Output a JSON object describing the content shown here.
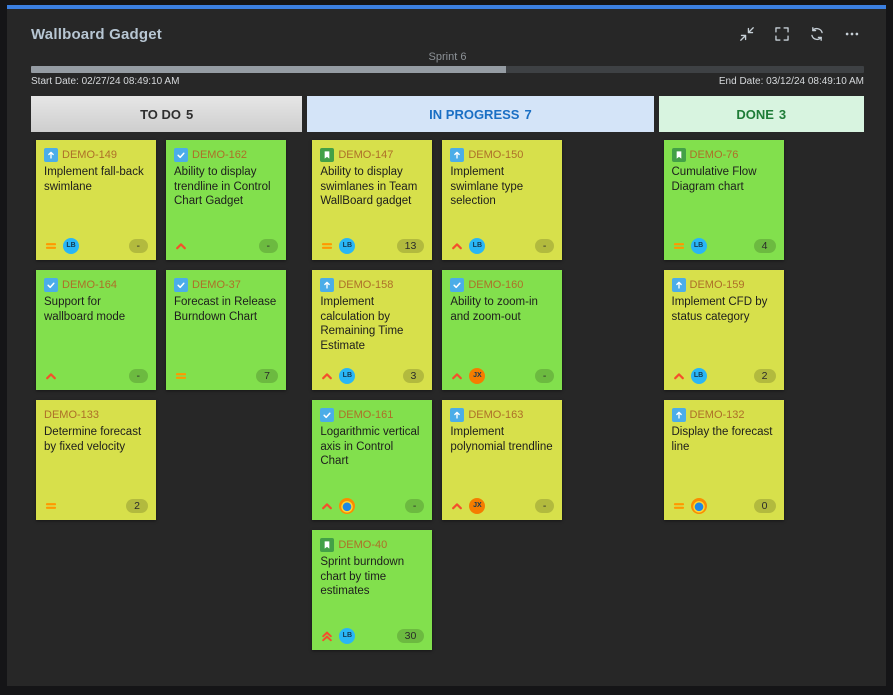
{
  "header": {
    "title": "Wallboard Gadget"
  },
  "toolbar": {
    "icons": [
      "compress",
      "fullscreen",
      "refresh",
      "more-options"
    ]
  },
  "sprint": {
    "name": "Sprint 6",
    "start_date": "Start Date: 02/27/24 08:49:10 AM",
    "end_date": "End Date: 03/12/24 08:49:10 AM",
    "progress_percent": 57
  },
  "palette": {
    "accent_blue": "#3b7fe0",
    "card_yellow": "#d7e04b",
    "card_green": "#82e04d",
    "todo_header_bg": "#d9d9d9",
    "inprogress_header_bg": "#d4e4f8",
    "done_header_bg": "#d8f4e0"
  },
  "avatars": {
    "LB": {
      "initials": "LB",
      "bg": "#29b6f6"
    },
    "JX": {
      "initials": "JX",
      "bg": "#f57c00"
    },
    "FX": {
      "initials": "",
      "bg": "browser-logo-gradient"
    }
  },
  "board": {
    "columns": [
      {
        "id": "todo",
        "label": "TO DO",
        "count": "5",
        "cards": [
          {
            "key": "DEMO-149",
            "summary": "Implement fall-back swimlane",
            "type": "improvement",
            "color": "yellow",
            "priority": "medium",
            "assignee": "LB",
            "estimate": "-"
          },
          {
            "key": "DEMO-162",
            "summary": "Ability to display trendline in Control Chart Gadget",
            "type": "task",
            "color": "green",
            "priority": "high",
            "assignee": null,
            "estimate": "-"
          },
          {
            "key": "DEMO-164",
            "summary": "Support for wallboard mode",
            "type": "task",
            "color": "green",
            "priority": "high",
            "assignee": null,
            "estimate": "-"
          },
          {
            "key": "DEMO-37",
            "summary": "Forecast in Release Burndown Chart",
            "type": "task",
            "color": "green",
            "priority": "medium",
            "assignee": null,
            "estimate": "7"
          },
          {
            "key": "DEMO-133",
            "summary": "Determine forecast by fixed velocity",
            "type": null,
            "color": "yellow",
            "priority": "medium",
            "assignee": null,
            "estimate": "2"
          }
        ]
      },
      {
        "id": "in-progress",
        "label": "IN PROGRESS",
        "count": "7",
        "cards": [
          {
            "key": "DEMO-147",
            "summary": "Ability to display swimlanes in Team WallBoard gadget",
            "type": "story",
            "color": "yellow",
            "priority": "medium",
            "assignee": "LB",
            "estimate": "13"
          },
          {
            "key": "DEMO-150",
            "summary": "Implement swimlane type selection",
            "type": "improvement",
            "color": "yellow",
            "priority": "high",
            "assignee": "LB",
            "estimate": "-"
          },
          {
            "key": "DEMO-158",
            "summary": "Implement calculation by Remaining Time Estimate",
            "type": "improvement",
            "color": "yellow",
            "priority": "high",
            "assignee": "LB",
            "estimate": "3"
          },
          {
            "key": "DEMO-160",
            "summary": "Ability to zoom-in and zoom-out",
            "type": "task",
            "color": "green",
            "priority": "high",
            "assignee": "JX",
            "estimate": "-"
          },
          {
            "key": "DEMO-161",
            "summary": "Logarithmic vertical axis in Control Chart",
            "type": "task",
            "color": "green",
            "priority": "high",
            "assignee": "FX",
            "estimate": "-"
          },
          {
            "key": "DEMO-163",
            "summary": "Implement polynomial trendline",
            "type": "improvement",
            "color": "yellow",
            "priority": "high",
            "assignee": "JX",
            "estimate": "-"
          },
          {
            "key": "DEMO-40",
            "summary": "Sprint burndown chart by time estimates",
            "type": "story",
            "color": "green",
            "priority": "highest",
            "assignee": "LB",
            "estimate": "30"
          }
        ]
      },
      {
        "id": "done",
        "label": "DONE",
        "count": "3",
        "cards": [
          {
            "key": "DEMO-76",
            "summary": "Cumulative Flow Diagram chart",
            "type": "story",
            "color": "green",
            "priority": "medium",
            "assignee": "LB",
            "estimate": "4"
          },
          {
            "key": "DEMO-159",
            "summary": "Implement CFD by status category",
            "type": "improvement",
            "color": "yellow",
            "priority": "high",
            "assignee": "LB",
            "estimate": "2"
          },
          {
            "key": "DEMO-132",
            "summary": "Display the forecast line",
            "type": "improvement",
            "color": "yellow",
            "priority": "medium",
            "assignee": "FX",
            "estimate": "0"
          }
        ]
      }
    ]
  }
}
